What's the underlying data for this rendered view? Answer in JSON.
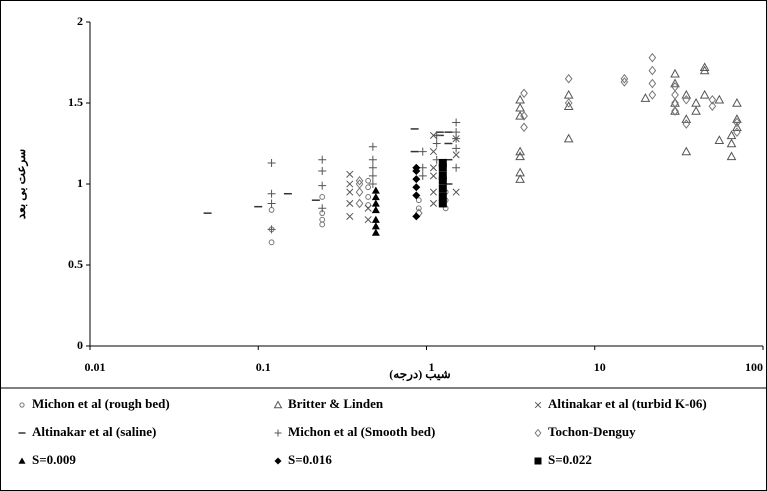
{
  "chart_data": {
    "type": "scatter",
    "x_label": "شیب (درجه)",
    "y_label": "سرعت بی بعد",
    "log_x": true,
    "xlim": [
      0.01,
      100
    ],
    "xticks": [
      0.01,
      0.1,
      1,
      10,
      100
    ],
    "ylim": [
      0,
      2
    ],
    "yticks": [
      0,
      0.5,
      1,
      1.5,
      2
    ],
    "series": [
      {
        "name": "Michon et al (rough bed)",
        "marker": "circle",
        "color": "#777777",
        "x": [
          0.12,
          0.12,
          0.12,
          0.24,
          0.24,
          0.24,
          0.24,
          0.45,
          0.45,
          0.45,
          0.45,
          0.9,
          0.9,
          1.3,
          1.3,
          1.3
        ],
        "values": [
          0.64,
          0.84,
          0.72,
          0.75,
          0.78,
          0.82,
          0.92,
          0.87,
          0.92,
          0.98,
          1.02,
          0.85,
          0.9,
          0.85,
          0.9,
          0.95
        ]
      },
      {
        "name": "Britter & Linden",
        "marker": "triangle-open",
        "color": "#555555",
        "x": [
          3.6,
          3.6,
          3.6,
          3.6,
          3.6,
          3.6,
          3.6,
          7,
          7,
          7,
          20,
          30,
          30,
          30,
          30,
          35,
          35,
          35,
          40,
          40,
          45,
          45,
          45,
          55,
          55,
          65,
          65,
          65,
          70,
          70,
          70
        ],
        "values": [
          1.03,
          1.07,
          1.17,
          1.2,
          1.42,
          1.47,
          1.52,
          1.28,
          1.48,
          1.55,
          1.53,
          1.68,
          1.62,
          1.5,
          1.45,
          1.2,
          1.4,
          1.55,
          1.5,
          1.45,
          1.72,
          1.7,
          1.55,
          1.27,
          1.52,
          1.17,
          1.25,
          1.3,
          1.5,
          1.4,
          1.35
        ]
      },
      {
        "name": "Altinakar et al (turbid K-06)",
        "marker": "cross",
        "color": "#555555",
        "x": [
          0.35,
          0.35,
          0.35,
          0.35,
          0.35,
          0.45,
          0.45,
          1.1,
          1.1,
          1.1,
          1.1,
          1.1,
          1.1,
          1.5,
          1.5,
          1.5
        ],
        "values": [
          1.06,
          1.0,
          0.95,
          0.88,
          0.8,
          0.85,
          0.78,
          1.3,
          1.2,
          1.1,
          1.05,
          0.95,
          0.88,
          1.28,
          1.18,
          0.95
        ]
      },
      {
        "name": "Altinakar et al (saline)",
        "marker": "dash",
        "color": "#333333",
        "x": [
          0.05,
          0.1,
          0.15,
          0.22,
          0.85,
          0.85,
          1.2,
          1.2,
          1.35,
          1.35,
          1.35,
          1.35
        ],
        "values": [
          0.82,
          0.86,
          0.94,
          0.9,
          1.34,
          1.2,
          1.3,
          1.32,
          1.32,
          1.25,
          1.15,
          1.0
        ]
      },
      {
        "name": "Michon et al (Smooth bed)",
        "marker": "plus",
        "color": "#555555",
        "x": [
          0.12,
          0.12,
          0.12,
          0.12,
          0.24,
          0.24,
          0.24,
          0.24,
          0.48,
          0.48,
          0.48,
          0.48,
          0.48,
          0.95,
          0.95,
          0.95,
          1.15,
          1.15,
          1.15,
          1.5,
          1.5,
          1.5,
          1.5,
          1.5
        ],
        "values": [
          1.13,
          0.94,
          0.88,
          0.72,
          1.15,
          1.08,
          0.99,
          0.85,
          1.23,
          1.15,
          1.1,
          1.05,
          1.0,
          1.2,
          1.1,
          1.05,
          1.3,
          1.25,
          1.15,
          1.38,
          1.32,
          1.28,
          1.22,
          1.1
        ]
      },
      {
        "name": "Tochon-Denguy",
        "marker": "diamond-open",
        "color": "#777777",
        "x": [
          0.4,
          0.4,
          0.4,
          0.4,
          0.9,
          3.8,
          3.8,
          3.8,
          7,
          7,
          15,
          15,
          22,
          22,
          22,
          22,
          30,
          30,
          30,
          30,
          35,
          35,
          50,
          50,
          70,
          70
        ],
        "values": [
          1.02,
          1.0,
          0.95,
          0.88,
          0.82,
          1.56,
          1.42,
          1.35,
          1.65,
          1.5,
          1.65,
          1.63,
          1.78,
          1.7,
          1.62,
          1.55,
          1.6,
          1.55,
          1.5,
          1.45,
          1.52,
          1.37,
          1.52,
          1.48,
          1.38,
          1.32
        ]
      },
      {
        "name": "S=0.009",
        "marker": "triangle",
        "color": "#000000",
        "x": [
          0.5,
          0.5,
          0.5,
          0.5,
          0.5,
          0.5,
          0.5
        ],
        "values": [
          0.7,
          0.74,
          0.78,
          0.84,
          0.88,
          0.92,
          0.96
        ]
      },
      {
        "name": "S=0.016",
        "marker": "diamond",
        "color": "#000000",
        "x": [
          0.87,
          0.87,
          0.87,
          0.87,
          0.87,
          0.87
        ],
        "values": [
          0.8,
          0.93,
          0.98,
          1.03,
          1.08,
          1.1
        ]
      },
      {
        "name": "S=0.022",
        "marker": "square",
        "color": "#000000",
        "x": [
          1.25,
          1.25,
          1.25,
          1.25,
          1.25,
          1.25,
          1.25
        ],
        "values": [
          0.88,
          0.92,
          0.97,
          1.02,
          1.05,
          1.1,
          1.13
        ]
      }
    ]
  }
}
